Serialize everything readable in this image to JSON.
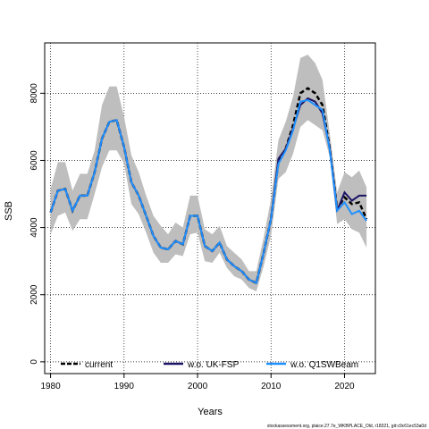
{
  "chart_data": {
    "type": "line",
    "xlabel": "Years",
    "ylabel": "SSB",
    "xlim": [
      1979.2,
      2024.2
    ],
    "ylim": [
      -350,
      9500
    ],
    "xticks": [
      1980,
      1990,
      2000,
      2010,
      2020
    ],
    "yticks": [
      0,
      2000,
      4000,
      6000,
      8000
    ],
    "grid": true,
    "legend_position": "bottom",
    "credit": "stockassessment.org, plaice.27.7e_WKBPLACE_Old, r18321, git:c9c61ec53a0d",
    "x": [
      1980,
      1981,
      1982,
      1983,
      1984,
      1985,
      1986,
      1987,
      1988,
      1989,
      1990,
      1991,
      1992,
      1993,
      1994,
      1995,
      1996,
      1997,
      1998,
      1999,
      2000,
      2001,
      2002,
      2003,
      2004,
      2005,
      2006,
      2007,
      2008,
      2009,
      2010,
      2011,
      2012,
      2013,
      2014,
      2015,
      2016,
      2017,
      2018,
      2019,
      2020,
      2021,
      2022,
      2023
    ],
    "band": {
      "color": "#bebebe",
      "lower": [
        3800,
        4350,
        4450,
        3900,
        4250,
        4250,
        5000,
        5800,
        6300,
        6300,
        5900,
        4700,
        4400,
        3850,
        3250,
        2950,
        2950,
        3200,
        3150,
        3800,
        3850,
        3000,
        2950,
        3250,
        2800,
        2550,
        2450,
        2200,
        2100,
        2850,
        3750,
        5450,
        5650,
        6200,
        7000,
        7200,
        7050,
        6900,
        6100,
        4100,
        4250,
        3950,
        3850,
        3400
      ],
      "upper": [
        5150,
        5950,
        5950,
        5100,
        5600,
        5600,
        6300,
        7650,
        8200,
        8200,
        7300,
        6150,
        5650,
        4950,
        4350,
        4050,
        3800,
        4150,
        4000,
        4950,
        4950,
        3950,
        3800,
        4050,
        3450,
        3250,
        3050,
        2700,
        2700,
        3700,
        4850,
        6600,
        7150,
        7900,
        9050,
        9150,
        8900,
        8400,
        6800,
        5050,
        5650,
        5500,
        5700,
        5200
      ]
    },
    "series": [
      {
        "name": "current",
        "color": "#000000",
        "dash": true,
        "values": [
          4450,
          5100,
          5150,
          4500,
          4950,
          4950,
          5650,
          6650,
          7150,
          7200,
          6400,
          5350,
          4950,
          4350,
          3750,
          3400,
          3350,
          3600,
          3500,
          4350,
          4350,
          3450,
          3300,
          3550,
          3050,
          2850,
          2700,
          2450,
          2350,
          3250,
          4250,
          5950,
          6350,
          7050,
          8000,
          8150,
          8000,
          7650,
          6350,
          4550,
          4900,
          4700,
          4750,
          4250
        ]
      },
      {
        "name": "w.o. UK-FSP",
        "color": "#1c1466",
        "dash": false,
        "values": [
          4450,
          5100,
          5150,
          4500,
          4950,
          4950,
          5650,
          6650,
          7150,
          7200,
          6400,
          5350,
          4950,
          4350,
          3750,
          3400,
          3350,
          3600,
          3500,
          4350,
          4350,
          3450,
          3300,
          3550,
          3050,
          2850,
          2700,
          2450,
          2350,
          3250,
          4250,
          6050,
          6350,
          6950,
          7650,
          7850,
          7750,
          7400,
          6350,
          4500,
          5050,
          4800,
          4950,
          4950
        ]
      },
      {
        "name": "w.o. Q1SWBeam",
        "color": "#1e90ff",
        "dash": false,
        "values": [
          4450,
          5100,
          5150,
          4500,
          4950,
          4950,
          5650,
          6650,
          7150,
          7200,
          6400,
          5350,
          4950,
          4350,
          3750,
          3400,
          3350,
          3600,
          3500,
          4350,
          4350,
          3450,
          3300,
          3550,
          3050,
          2850,
          2700,
          2450,
          2350,
          3250,
          4250,
          5900,
          6300,
          6900,
          7750,
          7800,
          7650,
          7500,
          6300,
          4500,
          4750,
          4400,
          4500,
          4200
        ]
      }
    ]
  }
}
